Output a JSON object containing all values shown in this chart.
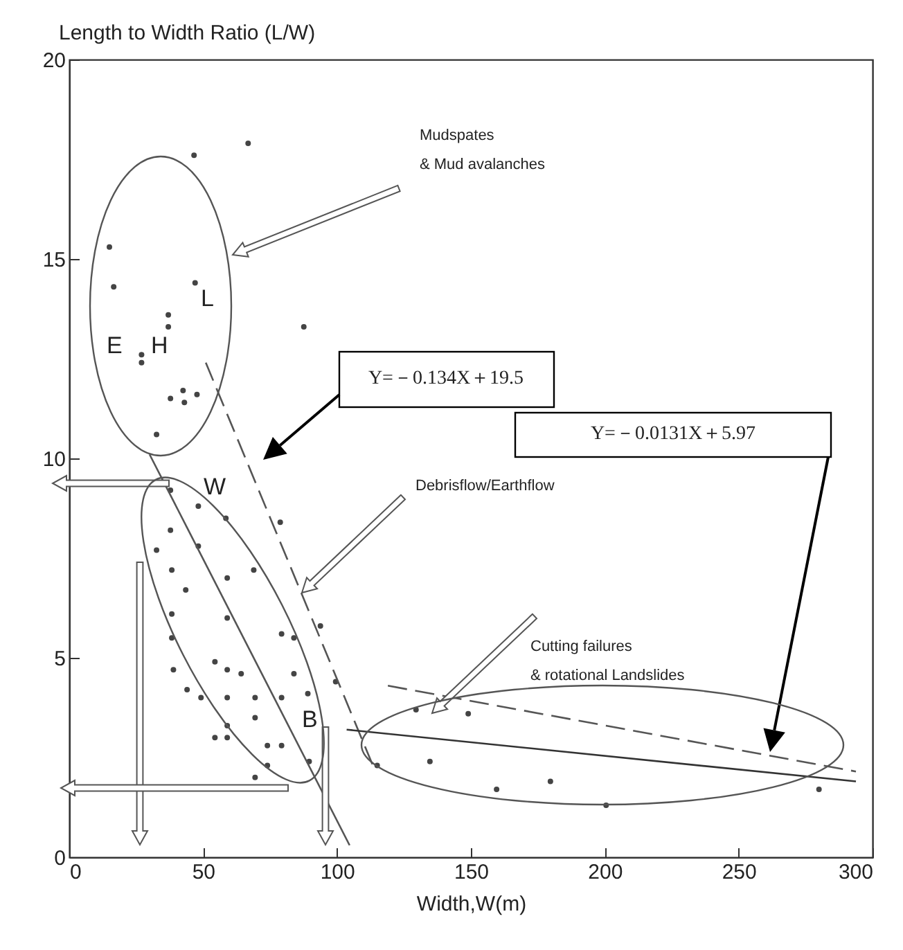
{
  "chart_data": {
    "type": "scatter",
    "xlabel": "Width,W(m)",
    "ylabel": "Length to Width Ratio (L/W)",
    "xlim": [
      0,
      300
    ],
    "ylim": [
      0,
      20
    ],
    "xticks": [
      0,
      50,
      100,
      150,
      200,
      250,
      300
    ],
    "yticks": [
      0,
      5,
      10,
      15,
      20
    ],
    "marker": "circle",
    "series": [
      {
        "color": "#444444",
        "x": [
          66.8,
          46.6,
          15,
          16.6,
          47,
          37,
          37,
          27,
          27,
          87.6,
          42.5,
          37.8,
          47.7,
          43,
          32.6,
          37.8,
          48.2,
          58.5,
          78.8,
          37.8,
          32.6,
          48.2,
          38.3,
          59,
          68.9,
          43.5,
          38.3,
          59,
          93.8,
          79.3,
          83.9,
          38.3,
          38.9,
          54.4,
          59,
          64.2,
          83.9,
          99.5,
          44,
          49.2,
          59,
          69.4,
          79.3,
          89.1,
          69.4,
          59,
          54.4,
          59,
          74,
          79.3,
          89.6,
          74,
          69.4,
          115,
          129.5,
          149,
          134.7,
          159.6,
          179.7,
          200.5,
          280
        ],
        "values": [
          17.9,
          17.6,
          15.3,
          14.3,
          14.4,
          13.6,
          13.3,
          12.6,
          12.4,
          13.3,
          11.7,
          11.5,
          11.6,
          11.4,
          10.6,
          9.2,
          8.8,
          8.5,
          8.4,
          8.2,
          7.7,
          7.8,
          7.2,
          7.0,
          7.2,
          6.7,
          6.1,
          6.0,
          5.8,
          5.6,
          5.5,
          5.5,
          4.7,
          4.9,
          4.7,
          4.6,
          4.6,
          4.4,
          4.2,
          4.0,
          4.0,
          4.0,
          4.0,
          4.1,
          3.5,
          3.3,
          3.0,
          3.0,
          2.8,
          2.8,
          2.4,
          2.3,
          2.0,
          2.3,
          3.7,
          3.6,
          2.4,
          1.7,
          1.9,
          1.3,
          1.7
        ]
      },
      {
        "type": "line",
        "marker": "none",
        "color": "#555555",
        "line_style": "dashed",
        "x": [
          51,
          114
        ],
        "values": [
          12.4,
          2.2
        ]
      },
      {
        "type": "line",
        "marker": "none",
        "color": "#555555",
        "x": [
          30,
          104.7
        ],
        "values": [
          10.1,
          0.3
        ]
      },
      {
        "type": "line",
        "marker": "none",
        "color": "#333333",
        "x": [
          103.6,
          293.8
        ],
        "values": [
          3.2,
          1.9
        ]
      },
      {
        "type": "line",
        "marker": "none",
        "color": "#555555",
        "line_style": "dashed",
        "x": [
          119,
          293.8
        ],
        "values": [
          4.3,
          2.15
        ]
      }
    ],
    "annotations": [
      "Mudspates\n& Mud avalanches",
      "Debrisflow/Earthflow",
      "Cutting failures\n& rotational Landslides",
      "Y=－0.134X＋19.5",
      "Y=－0.0131X＋5.97",
      "E",
      "H",
      "L",
      "W",
      "B"
    ]
  }
}
